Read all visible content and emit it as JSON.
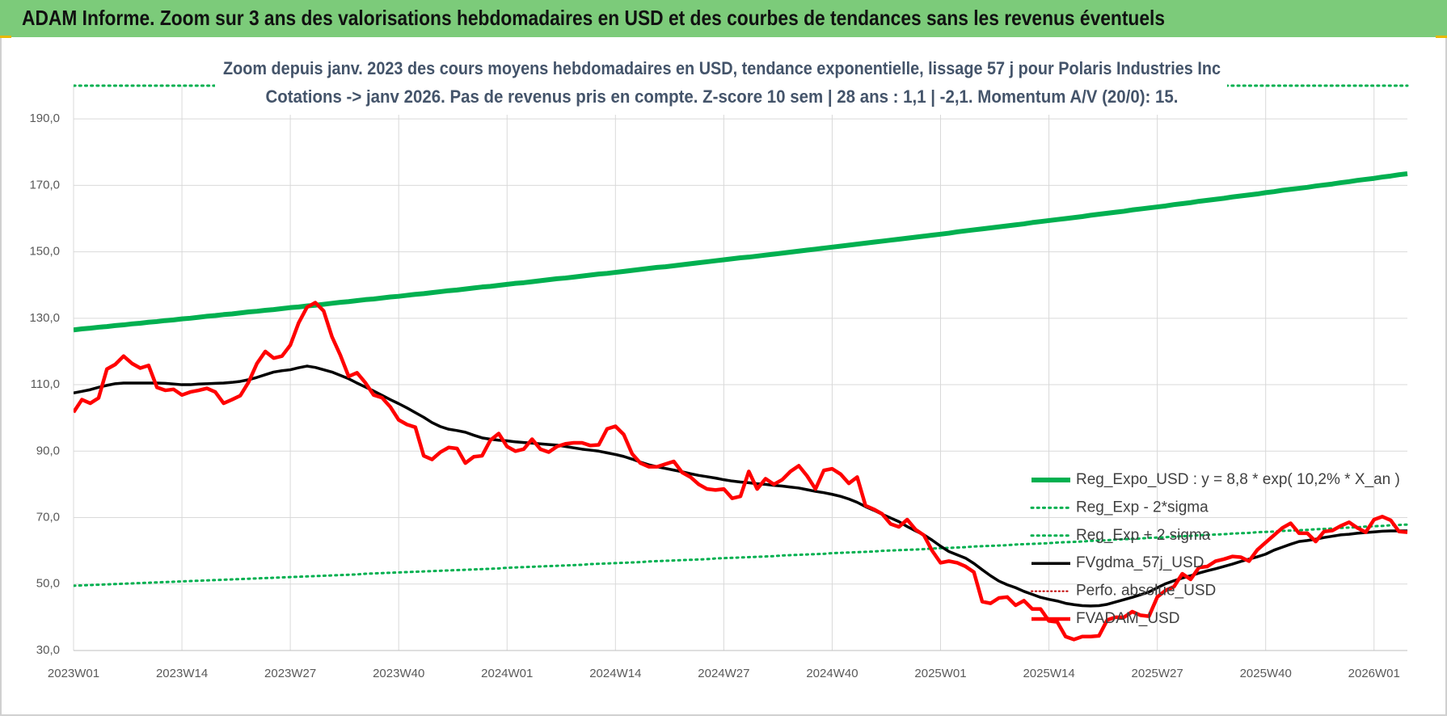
{
  "header": {
    "title": "ADAM Informe. Zoom sur 3 ans des valorisations hebdomadaires en USD et des courbes de tendances sans les revenus éventuels"
  },
  "chart_data": {
    "type": "line",
    "title": "Zoom depuis janv. 2023 des cours moyens hebdomadaires en USD, tendance exponentielle, lissage 57 j pour Polaris Industries Inc",
    "subtitle": "Cotations -> janv 2026. Pas de revenus pris en compte. Z-score 10 sem | 28 ans : 1,1 | -2,1. Momentum A/V (20/0): 15.",
    "categories": [
      "2023W01",
      null,
      null,
      null,
      null,
      null,
      null,
      null,
      null,
      null,
      null,
      null,
      null,
      "2023W14",
      null,
      null,
      null,
      null,
      null,
      null,
      null,
      null,
      null,
      null,
      null,
      null,
      "2023W27",
      null,
      null,
      null,
      null,
      null,
      null,
      null,
      null,
      null,
      null,
      null,
      null,
      "2023W40",
      null,
      null,
      null,
      null,
      null,
      null,
      null,
      null,
      null,
      null,
      null,
      null,
      "2024W01",
      null,
      null,
      null,
      null,
      null,
      null,
      null,
      null,
      null,
      null,
      null,
      null,
      "2024W14",
      null,
      null,
      null,
      null,
      null,
      null,
      null,
      null,
      null,
      null,
      null,
      null,
      "2024W27",
      null,
      null,
      null,
      null,
      null,
      null,
      null,
      null,
      null,
      null,
      null,
      null,
      "2024W40",
      null,
      null,
      null,
      null,
      null,
      null,
      null,
      null,
      null,
      null,
      null,
      null,
      "2025W01",
      null,
      null,
      null,
      null,
      null,
      null,
      null,
      null,
      null,
      null,
      null,
      null,
      "2025W14",
      null,
      null,
      null,
      null,
      null,
      null,
      null,
      null,
      null,
      null,
      null,
      null,
      "2025W27",
      null,
      null,
      null,
      null,
      null,
      null,
      null,
      null,
      null,
      null,
      null,
      null,
      "2025W40",
      null,
      null,
      null,
      null,
      null,
      null,
      null,
      null,
      null,
      null,
      null,
      null,
      "2026W01",
      null,
      null,
      null,
      null
    ],
    "ylim": [
      30,
      200
    ],
    "yticks": [
      {
        "value": 30,
        "label": "30,0"
      },
      {
        "value": 50,
        "label": "50,0"
      },
      {
        "value": 70,
        "label": "70,0"
      },
      {
        "value": 90,
        "label": "90,0"
      },
      {
        "value": 110,
        "label": "110,0"
      },
      {
        "value": 130,
        "label": "130,0"
      },
      {
        "value": 150,
        "label": "150,0"
      },
      {
        "value": 170,
        "label": "170,0"
      },
      {
        "value": 190,
        "label": "190,0"
      }
    ],
    "grid": true,
    "legend": "right",
    "series": [
      {
        "name": "Reg_Expo_USD : y = 8,8 * exp( 10,2% *  X_an )",
        "color": "#00b050",
        "style": "solid",
        "values": [
          126.5,
          126.8,
          127.0,
          127.3,
          127.5,
          127.8,
          128.0,
          128.3,
          128.5,
          128.8,
          129.0,
          129.3,
          129.5,
          129.8,
          130.0,
          130.3,
          130.6,
          130.8,
          131.1,
          131.3,
          131.6,
          131.9,
          132.1,
          132.4,
          132.6,
          132.9,
          133.2,
          133.4,
          133.7,
          133.9,
          134.2,
          134.5,
          134.8,
          135.0,
          135.3,
          135.6,
          135.8,
          136.1,
          136.4,
          136.6,
          136.9,
          137.2,
          137.4,
          137.7,
          138.0,
          138.3,
          138.5,
          138.8,
          139.1,
          139.4,
          139.6,
          139.9,
          140.2,
          140.5,
          140.7,
          141.0,
          141.3,
          141.6,
          141.9,
          142.1,
          142.4,
          142.7,
          143.0,
          143.3,
          143.5,
          143.8,
          144.1,
          144.4,
          144.7,
          145.0,
          145.3,
          145.5,
          145.8,
          146.1,
          146.4,
          146.7,
          147.0,
          147.3,
          147.6,
          147.9,
          148.2,
          148.4,
          148.7,
          149.0,
          149.3,
          149.6,
          149.9,
          150.2,
          150.5,
          150.8,
          151.1,
          151.4,
          151.7,
          152.0,
          152.3,
          152.6,
          152.9,
          153.2,
          153.5,
          153.8,
          154.1,
          154.4,
          154.7,
          155.0,
          155.3,
          155.6,
          156.0,
          156.3,
          156.6,
          156.9,
          157.2,
          157.5,
          157.8,
          158.1,
          158.4,
          158.8,
          159.1,
          159.4,
          159.7,
          160.0,
          160.3,
          160.6,
          161.0,
          161.3,
          161.6,
          161.9,
          162.2,
          162.6,
          162.9,
          163.2,
          163.5,
          163.8,
          164.2,
          164.5,
          164.8,
          165.2,
          165.5,
          165.8,
          166.1,
          166.5,
          166.8,
          167.1,
          167.4,
          167.8,
          168.1,
          168.5,
          168.8,
          169.1,
          169.4,
          169.8,
          170.1,
          170.4,
          170.8,
          171.1,
          171.5,
          171.8,
          172.1,
          172.5,
          172.8,
          173.2,
          173.5
        ]
      },
      {
        "name": "Reg_Exp - 2*sigma",
        "color": "#00b050",
        "style": "dotted",
        "values": [
          49.5,
          49.6,
          49.7,
          49.8,
          49.9,
          50.0,
          50.1,
          50.2,
          50.3,
          50.4,
          50.5,
          50.6,
          50.7,
          50.8,
          50.9,
          51.0,
          51.1,
          51.2,
          51.3,
          51.4,
          51.5,
          51.6,
          51.7,
          51.8,
          51.9,
          52.0,
          52.1,
          52.2,
          52.3,
          52.4,
          52.5,
          52.6,
          52.7,
          52.8,
          52.9,
          53.1,
          53.2,
          53.3,
          53.4,
          53.5,
          53.6,
          53.7,
          53.8,
          53.9,
          54.0,
          54.1,
          54.2,
          54.3,
          54.4,
          54.5,
          54.6,
          54.7,
          54.9,
          55.0,
          55.1,
          55.2,
          55.3,
          55.4,
          55.5,
          55.6,
          55.7,
          55.8,
          56.0,
          56.1,
          56.2,
          56.3,
          56.4,
          56.5,
          56.6,
          56.8,
          56.9,
          57.0,
          57.1,
          57.2,
          57.3,
          57.4,
          57.5,
          57.7,
          57.8,
          57.9,
          58.0,
          58.1,
          58.2,
          58.3,
          58.4,
          58.6,
          58.7,
          58.8,
          58.9,
          59.0,
          59.1,
          59.3,
          59.4,
          59.5,
          59.6,
          59.7,
          59.8,
          60.0,
          60.1,
          60.2,
          60.3,
          60.4,
          60.5,
          60.7,
          60.8,
          60.9,
          61.0,
          61.1,
          61.3,
          61.4,
          61.5,
          61.6,
          61.7,
          61.9,
          62.0,
          62.1,
          62.2,
          62.3,
          62.5,
          62.6,
          62.7,
          62.8,
          63.0,
          63.1,
          63.2,
          63.4,
          63.5,
          63.6,
          63.7,
          63.9,
          64.0,
          64.1,
          64.3,
          64.4,
          64.5,
          64.7,
          64.8,
          64.9,
          65.0,
          65.2,
          65.3,
          65.4,
          65.6,
          65.7,
          65.8,
          66.0,
          66.1,
          66.2,
          66.3,
          66.5,
          66.6,
          66.7,
          66.9,
          67.0,
          67.1,
          67.3,
          67.4,
          67.5,
          67.7,
          67.8,
          67.9
        ]
      },
      {
        "name": "Reg_Exp + 2 sigma",
        "color": "#00b050",
        "style": "dotted",
        "values": [
          200,
          200,
          200,
          200,
          200,
          200,
          200,
          200,
          200,
          200,
          200,
          200,
          200,
          200,
          200,
          200,
          200,
          200,
          200,
          200,
          200,
          200,
          200,
          200,
          200,
          200,
          200,
          200,
          200,
          200,
          200,
          200,
          200,
          200,
          200,
          200,
          200,
          200,
          200,
          200,
          200,
          200,
          200,
          200,
          200,
          200,
          200,
          200,
          200,
          200,
          200,
          200,
          200,
          200,
          200,
          200,
          200,
          200,
          200,
          200,
          200,
          200,
          200,
          200,
          200,
          200,
          200,
          200,
          200,
          200,
          200,
          200,
          200,
          200,
          200,
          200,
          200,
          200,
          200,
          200,
          200,
          200,
          200,
          200,
          200,
          200,
          200,
          200,
          200,
          200,
          200,
          200,
          200,
          200,
          200,
          200,
          200,
          200,
          200,
          200,
          200,
          200,
          200,
          200,
          200,
          200,
          200,
          200,
          200,
          200,
          200,
          200,
          200,
          200,
          200,
          200,
          200,
          200,
          200,
          200,
          200,
          200,
          200,
          200,
          200,
          200,
          200,
          200,
          200,
          200,
          200,
          200,
          200,
          200,
          200,
          200,
          200,
          200,
          200,
          200,
          200,
          200,
          200,
          200,
          200,
          200,
          200,
          200,
          200,
          200,
          200,
          200,
          200,
          200,
          200,
          200,
          200,
          200,
          200,
          200,
          200
        ]
      },
      {
        "name": "FVgdma_57j_USD",
        "color": "#000000",
        "style": "solid",
        "values": [
          107.5,
          108,
          108.5,
          109.2,
          109.8,
          110.3,
          110.5,
          110.5,
          110.5,
          110.5,
          110.5,
          110.4,
          110.2,
          110,
          110,
          110.2,
          110.3,
          110.4,
          110.5,
          110.7,
          111,
          111.5,
          112.2,
          113,
          113.8,
          114.2,
          114.5,
          115.1,
          115.6,
          115.2,
          114.5,
          113.8,
          112.8,
          111.8,
          110.5,
          109.3,
          108.1,
          106.8,
          105.5,
          104.3,
          103,
          101.6,
          100.2,
          98.6,
          97.4,
          96.6,
          96.2,
          95.7,
          94.8,
          94,
          93.6,
          93.3,
          93.1,
          92.8,
          92.6,
          92.4,
          92.2,
          92,
          91.8,
          91.4,
          91,
          90.6,
          90.3,
          90,
          89.5,
          89,
          88.4,
          87.6,
          86.7,
          85.9,
          85.3,
          84.8,
          84.3,
          83.8,
          83.2,
          82.7,
          82.3,
          81.9,
          81.4,
          81,
          80.7,
          80.5,
          80.2,
          80,
          79.7,
          79.5,
          79.2,
          78.9,
          78.4,
          77.9,
          77.5,
          77,
          76.4,
          75.6,
          74.6,
          73.3,
          72.2,
          71,
          69.9,
          68.8,
          67.3,
          66,
          64.8,
          63.2,
          61.4,
          59.8,
          58.8,
          57.8,
          56.2,
          54.3,
          52.5,
          50.9,
          49.8,
          48.9,
          47.8,
          46.9,
          46,
          45.4,
          44.9,
          44.2,
          43.8,
          43.5,
          43.4,
          43.5,
          43.9,
          44.6,
          45.3,
          46,
          46.8,
          47.6,
          48.9,
          50.1,
          51,
          51.8,
          52.5,
          53.3,
          54,
          54.6,
          55.3,
          56,
          56.8,
          57.5,
          58.2,
          59,
          60.2,
          61.1,
          62,
          62.8,
          63.1,
          63.5,
          64,
          64.4,
          64.8,
          65,
          65.3,
          65.5,
          65.7,
          65.9,
          66,
          66,
          66
        ]
      },
      {
        "name": "Perfo. absolue_USD",
        "color": "#c00000",
        "style": "dotted",
        "values": [
          null,
          null,
          null,
          null,
          null,
          null,
          null,
          null,
          null,
          null,
          null,
          null,
          null,
          null,
          null,
          null,
          null,
          null,
          null,
          null,
          null,
          null,
          null,
          null,
          null,
          null,
          null,
          null,
          null,
          null,
          null,
          null,
          null,
          null,
          null,
          null,
          null,
          null,
          null,
          null,
          null,
          null,
          null,
          null,
          null,
          null,
          null,
          null,
          null,
          null,
          null,
          null,
          null,
          null,
          null,
          null,
          null,
          null,
          null,
          null,
          null,
          null,
          null,
          null,
          null,
          null,
          null,
          null,
          null,
          null,
          null,
          null,
          null,
          null,
          null,
          null,
          null,
          null,
          null,
          null,
          null,
          null,
          null,
          null,
          null,
          null,
          null,
          null,
          null,
          null,
          null,
          null,
          null,
          null,
          null,
          null,
          null,
          null,
          null,
          null,
          null,
          null,
          null,
          null,
          null,
          null,
          null,
          null,
          null,
          null,
          null,
          null,
          null,
          null,
          null,
          null,
          null,
          null,
          null,
          null,
          null,
          null,
          null,
          null,
          null,
          null,
          null,
          null,
          null,
          null,
          null,
          null,
          null,
          null,
          null,
          null,
          null,
          null,
          null,
          null,
          null,
          null,
          null,
          null,
          null,
          null,
          null,
          null,
          null,
          null,
          null,
          null,
          null,
          null,
          null,
          null,
          null,
          null,
          null,
          null,
          null
        ]
      },
      {
        "name": "FVADAM_USD",
        "color": "#ff0000",
        "style": "solid",
        "values": [
          101.7,
          105.5,
          104.4,
          106,
          114.7,
          116.1,
          118.6,
          116.4,
          115,
          115.8,
          109.2,
          108.3,
          108.6,
          106.9,
          107.8,
          108.3,
          108.9,
          107.8,
          104.4,
          105.5,
          106.7,
          110.8,
          116.4,
          120,
          118,
          118.6,
          121.9,
          128.6,
          133.3,
          134.7,
          132.2,
          124.4,
          118.9,
          112.5,
          113.6,
          110.6,
          106.9,
          106.1,
          103.3,
          99.4,
          98,
          97.2,
          88.6,
          87.5,
          89.7,
          91.1,
          90.8,
          86.4,
          88.3,
          88.6,
          93.3,
          95.3,
          91.4,
          90,
          90.6,
          93.6,
          90.6,
          89.7,
          91.4,
          92.2,
          92.5,
          92.5,
          91.7,
          91.9,
          96.7,
          97.5,
          95,
          89.2,
          86.4,
          85.3,
          85.3,
          86.1,
          86.9,
          83.6,
          82.2,
          80,
          78.6,
          78.3,
          78.6,
          75.8,
          76.4,
          83.9,
          78.6,
          81.7,
          80,
          81.4,
          83.9,
          85.6,
          82.5,
          78.6,
          84.2,
          84.7,
          83.1,
          80.3,
          82.2,
          73.6,
          72.5,
          71.1,
          68.1,
          67.2,
          69.4,
          66.4,
          64.7,
          60,
          56.4,
          56.9,
          56.4,
          55.3,
          53.6,
          44.7,
          44.2,
          45.8,
          46.1,
          43.6,
          45,
          42.5,
          42.5,
          38.9,
          38.6,
          34.2,
          33.3,
          34.2,
          34.2,
          34.4,
          39.2,
          40,
          40,
          41.7,
          40.6,
          40.3,
          46.1,
          48.1,
          49.2,
          53.1,
          51.4,
          55,
          55.3,
          56.9,
          57.5,
          58.3,
          58.1,
          56.9,
          60.3,
          62.5,
          64.7,
          66.9,
          68.3,
          65.3,
          65.3,
          62.8,
          65.8,
          66.1,
          67.5,
          68.6,
          66.9,
          65.6,
          69.4,
          70.3,
          69.2,
          65.8,
          65.6
        ]
      }
    ]
  }
}
